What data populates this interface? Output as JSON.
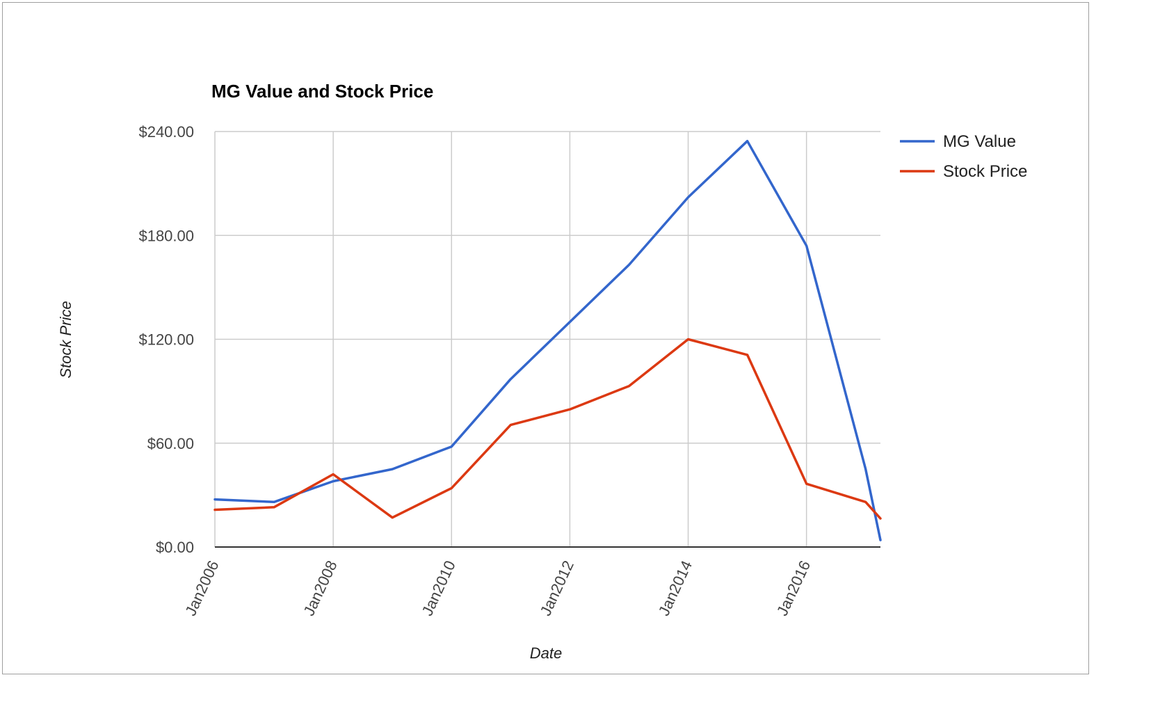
{
  "chart_data": {
    "type": "line",
    "title": "MG Value and Stock Price",
    "xlabel": "Date",
    "ylabel": "Stock Price",
    "x": [
      "2006-01",
      "2007-01",
      "2008-01",
      "2009-01",
      "2010-01",
      "2011-01",
      "2012-01",
      "2013-01",
      "2014-01",
      "2015-01",
      "2016-01",
      "2017-01",
      "2017-04"
    ],
    "series": [
      {
        "name": "MG Value",
        "color": "#3366cc",
        "values": [
          27.5,
          26,
          38,
          45,
          58,
          97,
          130,
          163,
          202,
          234.5,
          174,
          45,
          4
        ]
      },
      {
        "name": "Stock Price",
        "color": "#dc3912",
        "values": [
          21.5,
          23,
          42,
          17,
          34,
          70.5,
          79.5,
          93,
          120,
          111,
          36.5,
          26,
          16.5
        ]
      }
    ],
    "ylim": [
      0,
      240
    ],
    "yticks": [
      0,
      60,
      120,
      180,
      240
    ],
    "ytick_labels": [
      "$0.00",
      "$60.00",
      "$120.00",
      "$180.00",
      "$240.00"
    ],
    "xlim": [
      "2006-01",
      "2017-04"
    ],
    "xticks": [
      "2006-01",
      "2008-01",
      "2010-01",
      "2012-01",
      "2014-01",
      "2016-01"
    ],
    "xtick_labels": [
      "Jan2006",
      "Jan2008",
      "Jan2010",
      "Jan2012",
      "Jan2014",
      "Jan2016"
    ],
    "grid": true,
    "legend_position": "right"
  }
}
